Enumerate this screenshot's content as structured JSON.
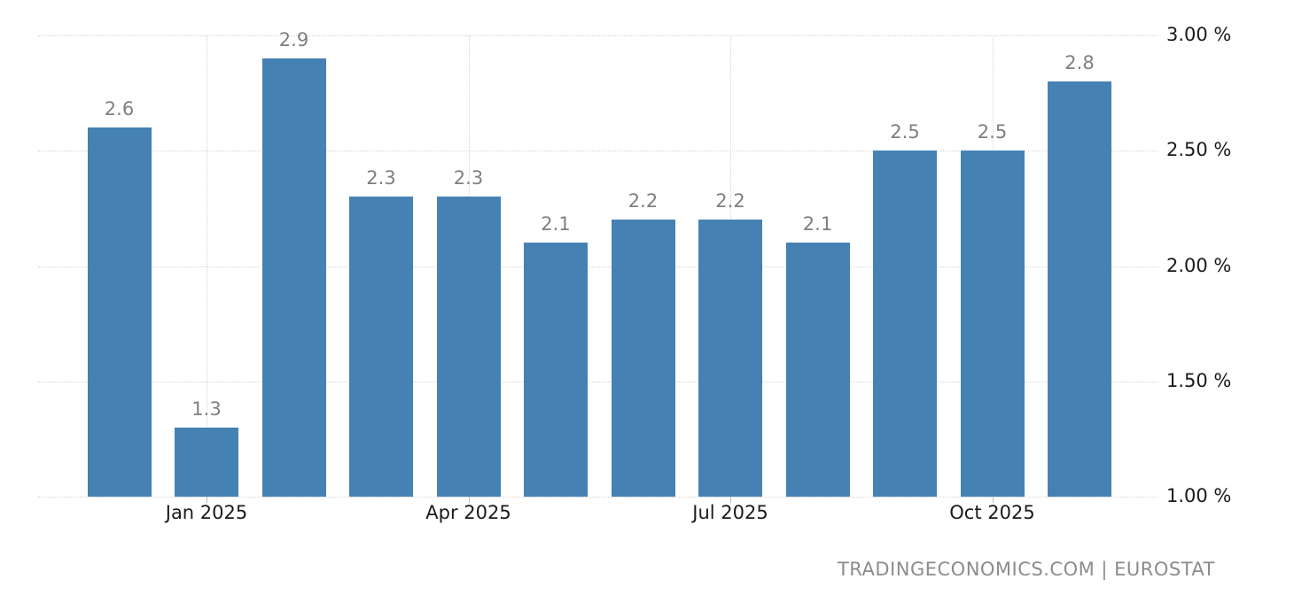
{
  "chart_data": {
    "type": "bar",
    "title": "",
    "values": [
      2.6,
      1.3,
      2.9,
      2.3,
      2.3,
      2.1,
      2.2,
      2.2,
      2.1,
      2.5,
      2.5,
      2.8
    ],
    "bar_labels": [
      "2.6",
      "1.3",
      "2.9",
      "2.3",
      "2.3",
      "2.1",
      "2.2",
      "2.2",
      "2.1",
      "2.5",
      "2.5",
      "2.8"
    ],
    "x_ticks": [
      {
        "label": "Jan 2025",
        "index": 1
      },
      {
        "label": "Apr 2025",
        "index": 4
      },
      {
        "label": "Jul 2025",
        "index": 7
      },
      {
        "label": "Oct 2025",
        "index": 10
      }
    ],
    "y_ticks": [
      {
        "label": "3.00 %",
        "value": 3.0
      },
      {
        "label": "2.50 %",
        "value": 2.5
      },
      {
        "label": "2.00 %",
        "value": 2.0
      },
      {
        "label": "1.50 %",
        "value": 1.5
      },
      {
        "label": "1.00 %",
        "value": 1.0
      }
    ],
    "ylim": [
      1.0,
      3.0
    ],
    "unit": "%",
    "grid": true,
    "legend_position": "none",
    "colors": {
      "bar": "#4681b4",
      "value_label": "#7f7f7f",
      "axis_label": "#1a1a1a",
      "gridline": "#d4d4d4",
      "tick_mark": "#bbbbbb",
      "attribution": "#8c8c8c",
      "background": "#ffffff"
    }
  },
  "attribution": {
    "text": "TRADINGECONOMICS.COM | EUROSTAT"
  }
}
